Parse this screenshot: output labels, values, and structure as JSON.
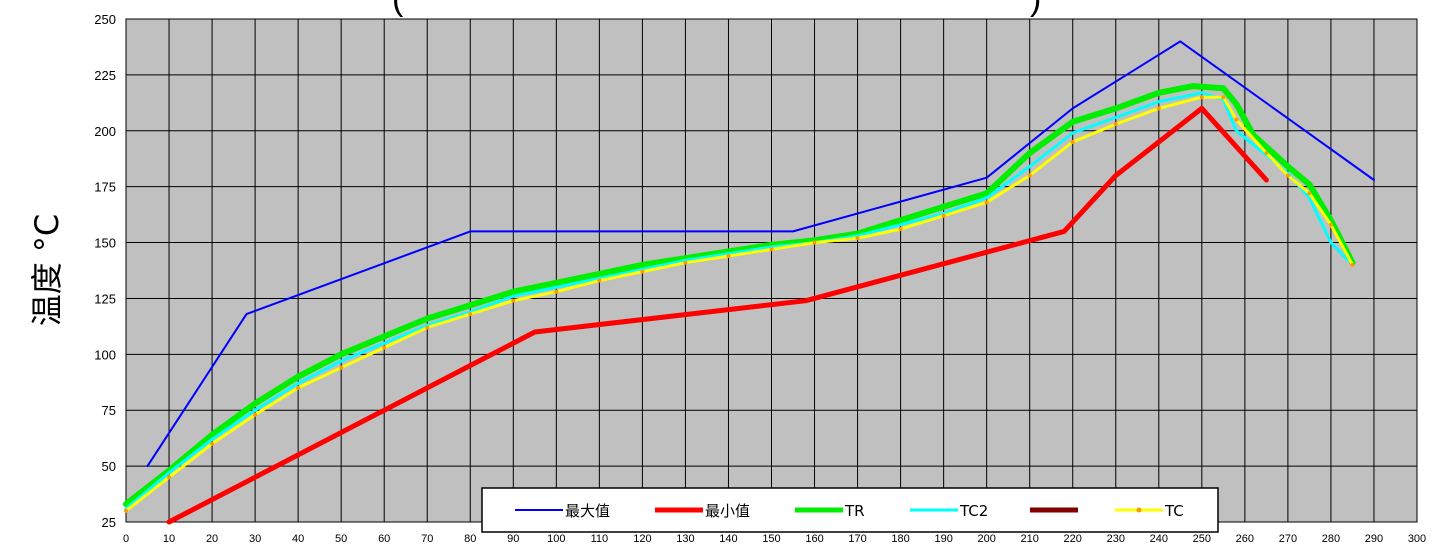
{
  "chart_data": {
    "type": "line",
    "title": "(",
    "title_right": ")",
    "xlabel": "",
    "ylabel": "温度 °C",
    "xlim": [
      0,
      300
    ],
    "ylim": [
      25,
      250
    ],
    "x_ticks": [
      0,
      10,
      20,
      30,
      40,
      50,
      60,
      70,
      80,
      90,
      100,
      110,
      120,
      130,
      140,
      150,
      160,
      170,
      180,
      190,
      200,
      210,
      220,
      230,
      240,
      250,
      260,
      270,
      280,
      290,
      300
    ],
    "y_ticks": [
      25,
      50,
      75,
      100,
      125,
      150,
      175,
      200,
      225,
      250
    ],
    "grid": true,
    "legend_position": "bottom-center",
    "colors": {
      "plot_bg": "#c0c0c0",
      "grid": "#000000"
    },
    "series": [
      {
        "name": "最大值",
        "color": "#0000ff",
        "width": 2,
        "points": [
          [
            5,
            50
          ],
          [
            28,
            118
          ],
          [
            80,
            155
          ],
          [
            155,
            155
          ],
          [
            200,
            179
          ],
          [
            220,
            210
          ],
          [
            245,
            240
          ],
          [
            290,
            178
          ]
        ]
      },
      {
        "name": "最小值",
        "color": "#ff0000",
        "width": 5,
        "points": [
          [
            10,
            25
          ],
          [
            95,
            110
          ],
          [
            158,
            124
          ],
          [
            218,
            155
          ],
          [
            230,
            180
          ],
          [
            250,
            210
          ],
          [
            265,
            178
          ]
        ]
      },
      {
        "name": "TR",
        "color": "#00ee00",
        "width": 6,
        "points": [
          [
            0,
            33
          ],
          [
            10,
            48
          ],
          [
            20,
            64
          ],
          [
            30,
            78
          ],
          [
            40,
            90
          ],
          [
            50,
            100
          ],
          [
            60,
            108
          ],
          [
            70,
            116
          ],
          [
            80,
            122
          ],
          [
            90,
            128
          ],
          [
            100,
            132
          ],
          [
            110,
            136
          ],
          [
            120,
            140
          ],
          [
            130,
            143
          ],
          [
            140,
            146
          ],
          [
            150,
            149
          ],
          [
            160,
            151
          ],
          [
            170,
            154
          ],
          [
            180,
            160
          ],
          [
            190,
            166
          ],
          [
            200,
            172
          ],
          [
            210,
            190
          ],
          [
            220,
            204
          ],
          [
            230,
            210
          ],
          [
            240,
            217
          ],
          [
            248,
            220
          ],
          [
            255,
            219
          ],
          [
            258,
            212
          ],
          [
            262,
            198
          ],
          [
            270,
            184
          ],
          [
            275,
            176
          ],
          [
            280,
            160
          ],
          [
            285,
            141
          ]
        ]
      },
      {
        "name": "TC2",
        "color": "#00ffff",
        "width": 3,
        "points": [
          [
            0,
            31
          ],
          [
            10,
            47
          ],
          [
            20,
            62
          ],
          [
            30,
            75
          ],
          [
            40,
            87
          ],
          [
            50,
            97
          ],
          [
            60,
            105
          ],
          [
            70,
            113
          ],
          [
            80,
            119
          ],
          [
            90,
            126
          ],
          [
            100,
            130
          ],
          [
            110,
            134
          ],
          [
            120,
            138
          ],
          [
            130,
            142
          ],
          [
            140,
            145
          ],
          [
            150,
            148
          ],
          [
            160,
            150
          ],
          [
            170,
            153
          ],
          [
            180,
            158
          ],
          [
            190,
            163
          ],
          [
            200,
            170
          ],
          [
            210,
            184
          ],
          [
            220,
            199
          ],
          [
            230,
            206
          ],
          [
            240,
            213
          ],
          [
            250,
            217
          ],
          [
            255,
            214
          ],
          [
            258,
            200
          ],
          [
            265,
            189
          ],
          [
            270,
            181
          ],
          [
            275,
            170
          ],
          [
            280,
            150
          ],
          [
            284,
            142
          ]
        ]
      },
      {
        "name": "",
        "color": "#800000",
        "width": 5,
        "points": []
      },
      {
        "name": "TC",
        "color": "#ffff00",
        "marker_color": "#ff9900",
        "width": 3,
        "points": [
          [
            0,
            30
          ],
          [
            10,
            45
          ],
          [
            20,
            60
          ],
          [
            30,
            73
          ],
          [
            40,
            85
          ],
          [
            50,
            94
          ],
          [
            60,
            103
          ],
          [
            70,
            112
          ],
          [
            80,
            118
          ],
          [
            90,
            124
          ],
          [
            100,
            128
          ],
          [
            110,
            133
          ],
          [
            120,
            137
          ],
          [
            130,
            141
          ],
          [
            140,
            144
          ],
          [
            150,
            147
          ],
          [
            160,
            150
          ],
          [
            170,
            152
          ],
          [
            180,
            156
          ],
          [
            190,
            162
          ],
          [
            200,
            168
          ],
          [
            210,
            180
          ],
          [
            220,
            195
          ],
          [
            230,
            203
          ],
          [
            240,
            210
          ],
          [
            250,
            215
          ],
          [
            255,
            215
          ],
          [
            258,
            205
          ],
          [
            265,
            190
          ],
          [
            270,
            180
          ],
          [
            275,
            172
          ],
          [
            280,
            158
          ],
          [
            285,
            140
          ]
        ]
      }
    ]
  }
}
